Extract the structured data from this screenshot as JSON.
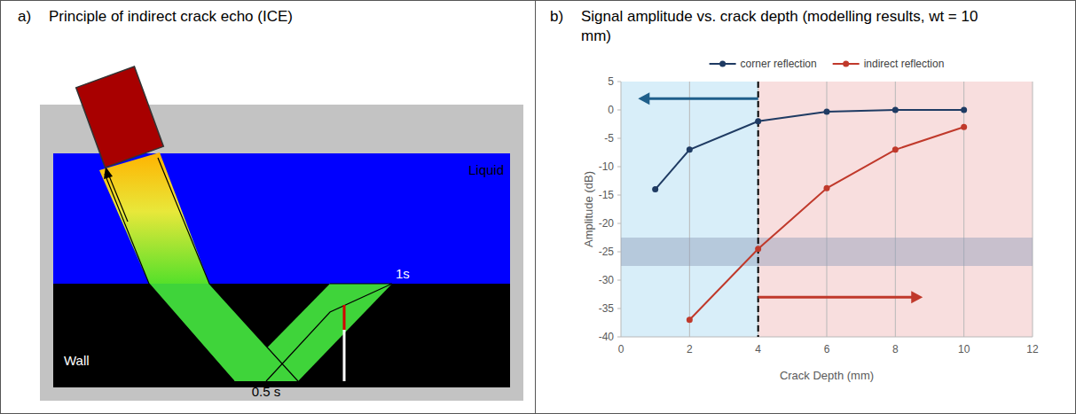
{
  "diagram": {
    "panel": "a)",
    "title": "Principle of indirect crack echo (ICE)",
    "labels": {
      "liquid": "Liquid",
      "wall": "Wall",
      "half_skip": "0.5 s",
      "full_skip": "1s"
    }
  },
  "chart_data": {
    "type": "line",
    "panel": "b)",
    "title": "Signal amplitude vs. crack depth (modelling results, wt = 10 mm)",
    "x_label": "Crack Depth (mm)",
    "y_label": "Amplitude (dB)",
    "xlim": [
      0,
      12
    ],
    "ylim": [
      -40,
      5
    ],
    "xticks": [
      0,
      2,
      4,
      6,
      8,
      10,
      12
    ],
    "yticks": [
      -40,
      -35,
      -30,
      -25,
      -20,
      -15,
      -10,
      -5,
      0,
      5
    ],
    "grid": "x",
    "legend": "top",
    "marker": "circle",
    "series": [
      {
        "name": "corner reflection",
        "color": "#1f3b63",
        "x": [
          1,
          2,
          4,
          6,
          8,
          10
        ],
        "values": [
          -14,
          -7,
          -2,
          -0.3,
          0,
          0
        ]
      },
      {
        "name": "indirect reflection",
        "color": "#c0392b",
        "x": [
          2,
          4,
          6,
          8,
          10
        ],
        "values": [
          -37,
          -24.5,
          -13.8,
          -7,
          -3
        ]
      }
    ],
    "threshold": 4,
    "noise_band": [
      -27.5,
      -22.5
    ],
    "arrows": [
      {
        "y": 2,
        "from": 4,
        "to": 0.5,
        "color": "#1f5f8b"
      },
      {
        "y": -33,
        "from": 4,
        "to": 8.8,
        "color": "#c0392b"
      }
    ]
  }
}
